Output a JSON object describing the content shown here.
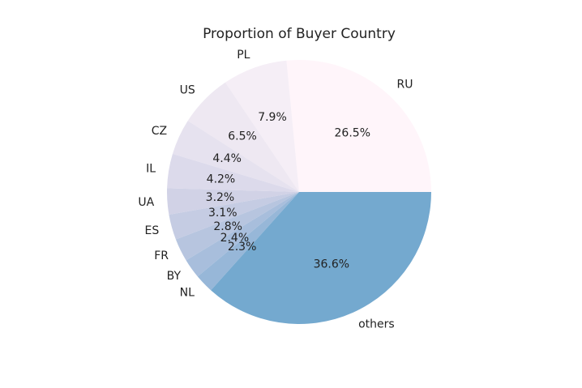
{
  "chart_data": {
    "type": "pie",
    "title": "Proportion of Buyer Country",
    "categories": [
      "RU",
      "PL",
      "US",
      "CZ",
      "IL",
      "UA",
      "ES",
      "FR",
      "BY",
      "NL",
      "others"
    ],
    "values": [
      26.5,
      7.9,
      6.5,
      4.4,
      4.2,
      3.2,
      3.1,
      2.8,
      2.4,
      2.3,
      36.6
    ],
    "value_labels": [
      "26.5%",
      "7.9%",
      "6.5%",
      "4.4%",
      "4.2%",
      "3.2%",
      "3.1%",
      "2.8%",
      "2.4%",
      "2.3%",
      "36.6%"
    ],
    "colors": [
      "#fff5fa",
      "#f5eef6",
      "#eee8f2",
      "#e6e2ef",
      "#dcdaeb",
      "#d1d2e6",
      "#c5cce3",
      "#b7c5df",
      "#a8bedc",
      "#97b7d8",
      "#74a9cf"
    ]
  }
}
